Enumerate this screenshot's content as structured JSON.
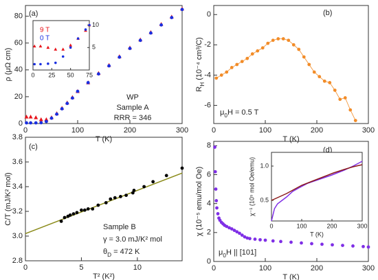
{
  "chart_data": [
    {
      "type": "scatter",
      "panel_label": "(a)",
      "x_label": "T (K)",
      "y_label": "ρ (μΩ cm)",
      "xlim": [
        0,
        300
      ],
      "xticks": [
        0,
        100,
        200,
        300
      ],
      "ylim": [
        0,
        88
      ],
      "yticks": [
        0,
        20,
        40,
        60,
        80
      ],
      "annotations": [
        "WP",
        "Sample A",
        "RRR = 346"
      ],
      "series": [
        {
          "color": "#e8141b",
          "marker": "triangle",
          "x": [
            2,
            10,
            20,
            30,
            40,
            50,
            60,
            70,
            80,
            90,
            100,
            120,
            140,
            160,
            180,
            200,
            220,
            240,
            260,
            280,
            300
          ],
          "values": [
            5,
            5,
            4.5,
            3,
            3,
            4.5,
            7.5,
            11.5,
            15.5,
            19.5,
            24,
            30.5,
            37.5,
            43.5,
            50,
            56.5,
            62.5,
            68,
            74,
            79.5,
            85.5
          ]
        },
        {
          "color": "#1a2fe0",
          "marker": "circle",
          "x": [
            2,
            10,
            20,
            30,
            40,
            50,
            60,
            70,
            80,
            90,
            100,
            120,
            140,
            160,
            180,
            200,
            220,
            240,
            260,
            280,
            300
          ],
          "values": [
            0.5,
            0.5,
            0.5,
            0.6,
            1.5,
            4,
            7,
            11,
            15,
            19,
            24,
            30.5,
            37,
            43,
            49.5,
            56,
            62,
            67.5,
            73.5,
            79,
            85
          ]
        }
      ],
      "inset": {
        "xlim": [
          0,
          75
        ],
        "xticks": [
          0,
          25,
          50,
          75
        ],
        "ylim": [
          0,
          11
        ],
        "yticks": [
          5,
          10
        ],
        "y_side": "right",
        "series": [
          {
            "name": "9 T",
            "color": "#e8141b",
            "marker": "triangle",
            "x": [
              2,
              10,
              20,
              30,
              40,
              50,
              60,
              70,
              75
            ],
            "values": [
              5.3,
              5.3,
              5,
              4.6,
              4.6,
              5.5,
              7,
              8.8,
              10
            ]
          },
          {
            "name": "0 T",
            "color": "#1a2fe0",
            "marker": "circle",
            "x": [
              2,
              10,
              20,
              30,
              40,
              50,
              60,
              70,
              75
            ],
            "values": [
              1.3,
              1.3,
              1.4,
              1.6,
              3,
              5,
              7,
              9,
              10
            ]
          }
        ]
      }
    },
    {
      "type": "line",
      "panel_label": "(b)",
      "x_label": "T (K)",
      "y_label": [
        "R",
        "H",
        " (10⁻⁴ cm³/C)"
      ],
      "xlim": [
        0,
        300
      ],
      "xticks": [
        0,
        100,
        200,
        300
      ],
      "ylim": [
        -7.2,
        0.6
      ],
      "yticks": [
        -6,
        -4,
        -2,
        0
      ],
      "annotations": [
        [
          "μ",
          "0",
          "H = 0.5 T"
        ]
      ],
      "series": [
        {
          "color": "#f28c28",
          "marker": "circle",
          "connect": true,
          "x": [
            5,
            15,
            25,
            35,
            45,
            55,
            65,
            75,
            85,
            95,
            105,
            115,
            125,
            135,
            145,
            155,
            165,
            175,
            185,
            195,
            205,
            215,
            225,
            235,
            245,
            255,
            265,
            275
          ],
          "values": [
            -4.2,
            -4,
            -3.8,
            -3.5,
            -3.3,
            -3.1,
            -2.9,
            -2.6,
            -2.4,
            -2.2,
            -1.9,
            -1.7,
            -1.6,
            -1.6,
            -1.7,
            -2,
            -2.3,
            -2.8,
            -3.3,
            -3.8,
            -4.1,
            -4.4,
            -4.5,
            -5,
            -5.6,
            -5.5,
            -6.3,
            -7
          ]
        }
      ]
    },
    {
      "type": "scatter",
      "panel_label": "(c)",
      "x_label": "T² (K²)",
      "y_label": "C/T (mJ/K² mol)",
      "xlim": [
        0,
        14
      ],
      "xticks": [
        0,
        5,
        10
      ],
      "ylim": [
        2.8,
        3.8
      ],
      "yticks": [
        2.8,
        {
          "value": 3,
          "label": "3.0"
        },
        3.2,
        3.4,
        3.6,
        3.8
      ],
      "annotations": [
        "Sample B",
        "γ = 3.0 mJ/K² mol",
        [
          "θ",
          "D",
          " = 472 K"
        ]
      ],
      "series": [
        {
          "color": "#8b8b1a",
          "marker": "line",
          "x": [
            0,
            14
          ],
          "values": [
            3.02,
            3.51
          ]
        },
        {
          "color": "#000000",
          "marker": "circle",
          "x": [
            3.2,
            3.5,
            3.8,
            4,
            4.3,
            4.6,
            5,
            5.3,
            5.6,
            6,
            6.5,
            7.2,
            7.6,
            8,
            8.5,
            9,
            9.6,
            9.7,
            10.6,
            11.4,
            12.6,
            14
          ],
          "values": [
            3.12,
            3.15,
            3.16,
            3.17,
            3.18,
            3.19,
            3.21,
            3.21,
            3.22,
            3.22,
            3.25,
            3.27,
            3.3,
            3.31,
            3.32,
            3.33,
            3.35,
            3.37,
            3.4,
            3.44,
            3.49,
            3.55
          ]
        }
      ]
    },
    {
      "type": "scatter",
      "panel_label": "(d)",
      "x_label": "T (K)",
      "y_label": "χ (10⁻⁵ emu/mol Oe)",
      "xlim": [
        0,
        300
      ],
      "xticks": [
        0,
        100,
        200,
        300
      ],
      "ylim": [
        0,
        8.3
      ],
      "yticks": [
        0,
        2,
        4,
        6,
        8
      ],
      "annotations": [
        [
          "μ",
          "0",
          "H || [101]"
        ]
      ],
      "series": [
        {
          "color": "#7f2fe6",
          "marker": "circle",
          "x": [
            2,
            3,
            4,
            5,
            6,
            8,
            10,
            12,
            15,
            18,
            21,
            25,
            30,
            35,
            40,
            45,
            50,
            55,
            60,
            65,
            70,
            80,
            90,
            100,
            115,
            130,
            150,
            170,
            190,
            210,
            230,
            250,
            270,
            290,
            300
          ],
          "values": [
            7.9,
            6.2,
            5,
            4.2,
            3.7,
            3.3,
            3,
            2.85,
            2.7,
            2.6,
            2.5,
            2.42,
            2.33,
            2.25,
            2.15,
            2.05,
            1.95,
            1.82,
            1.7,
            1.62,
            1.58,
            1.54,
            1.5,
            1.47,
            1.42,
            1.38,
            1.33,
            1.28,
            1.23,
            1.19,
            1.15,
            1.11,
            1.07,
            1.03,
            1
          ]
        }
      ],
      "inset": {
        "x_label": "T (K)",
        "y_label": "χ⁻¹ (10⁵ mol Oe/emu)",
        "xlim": [
          0,
          300
        ],
        "xticks": [
          0,
          100,
          200,
          300
        ],
        "ylim": [
          0.2,
          1.2
        ],
        "yticks": [
          0.5,
          {
            "value": 1,
            "label": "1.0"
          }
        ],
        "y_side": "left",
        "series": [
          {
            "color": "#7f2fe6",
            "marker": "line",
            "x": [
              0,
              10,
              20,
              35,
              50,
              70,
              90,
              120,
              160,
              200,
              240,
              270,
              300
            ],
            "values": [
              0.2,
              0.38,
              0.45,
              0.5,
              0.55,
              0.63,
              0.68,
              0.75,
              0.81,
              0.87,
              0.94,
              1,
              1.07
            ]
          },
          {
            "color": "#8b1a1a",
            "marker": "line",
            "x": [
              0,
              25,
              50,
              75,
              100,
              135,
              170,
              205,
              240,
              270,
              300
            ],
            "values": [
              0.5,
              0.55,
              0.6,
              0.66,
              0.72,
              0.78,
              0.84,
              0.9,
              0.95,
              0.99,
              1.02
            ]
          }
        ]
      }
    }
  ]
}
